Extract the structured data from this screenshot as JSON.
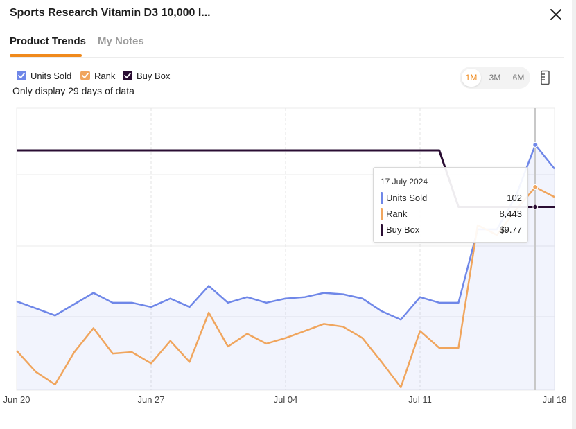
{
  "header": {
    "title": "Sports Research Vitamin D3 10,000 I...",
    "close_icon": "close-icon"
  },
  "tabs": [
    {
      "label": "Product Trends",
      "active": true
    },
    {
      "label": "My Notes",
      "active": false
    }
  ],
  "legend": [
    {
      "label": "Units Sold",
      "color": "#6f87e8",
      "checked": true
    },
    {
      "label": "Rank",
      "color": "#f0a55d",
      "checked": true
    },
    {
      "label": "Buy Box",
      "color": "#2a0d33",
      "checked": true
    }
  ],
  "note": "Only display 29 days of data",
  "range": {
    "options": [
      "1M",
      "3M",
      "6M"
    ],
    "selected": "1M",
    "ruler_icon": "ruler-icon"
  },
  "chart_data": {
    "type": "line",
    "x": [
      "Jun 20",
      "Jun 21",
      "Jun 22",
      "Jun 23",
      "Jun 24",
      "Jun 25",
      "Jun 26",
      "Jun 27",
      "Jun 28",
      "Jun 29",
      "Jun 30",
      "Jul 01",
      "Jul 02",
      "Jul 03",
      "Jul 04",
      "Jul 05",
      "Jul 06",
      "Jul 07",
      "Jul 08",
      "Jul 09",
      "Jul 10",
      "Jul 11",
      "Jul 12",
      "Jul 13",
      "Jul 14",
      "Jul 15",
      "Jul 16",
      "Jul 17",
      "Jul 18"
    ],
    "xticks": [
      "Jun 20",
      "Jun 27",
      "Jul 04",
      "Jul 11",
      "Jul 18"
    ],
    "grid": true,
    "highlight_index": 27,
    "series": [
      {
        "name": "Units Sold",
        "color": "#6f87e8",
        "area": true,
        "values": [
          63,
          58,
          53,
          61,
          69,
          62,
          62,
          59,
          65,
          59,
          74,
          62,
          66,
          62,
          65,
          66,
          69,
          68,
          65,
          56,
          50,
          66,
          62,
          62,
          114,
          114,
          138,
          174,
          157
        ]
      },
      {
        "name": "Rank",
        "color": "#f0a55d",
        "values": [
          28,
          13,
          4,
          27,
          44,
          26,
          27,
          19,
          35,
          20,
          55,
          31,
          40,
          33,
          37,
          42,
          47,
          45,
          37,
          20,
          2,
          42,
          30,
          30,
          117,
          110,
          128,
          144,
          137
        ]
      },
      {
        "name": "Buy Box",
        "color": "#2a0d33",
        "stepped": true,
        "values": [
          170,
          170,
          170,
          170,
          170,
          170,
          170,
          170,
          170,
          170,
          170,
          170,
          170,
          170,
          170,
          170,
          170,
          170,
          170,
          170,
          170,
          170,
          170,
          130,
          130,
          130,
          130,
          130,
          130
        ]
      }
    ],
    "tooltip": {
      "date": "17 July 2024",
      "rows": [
        {
          "name": "Units Sold",
          "value": "102",
          "color": "#6f87e8"
        },
        {
          "name": "Rank",
          "value": "8,443",
          "color": "#f0a55d"
        },
        {
          "name": "Buy Box",
          "value": "$9.77",
          "color": "#2a0d33"
        }
      ]
    }
  }
}
